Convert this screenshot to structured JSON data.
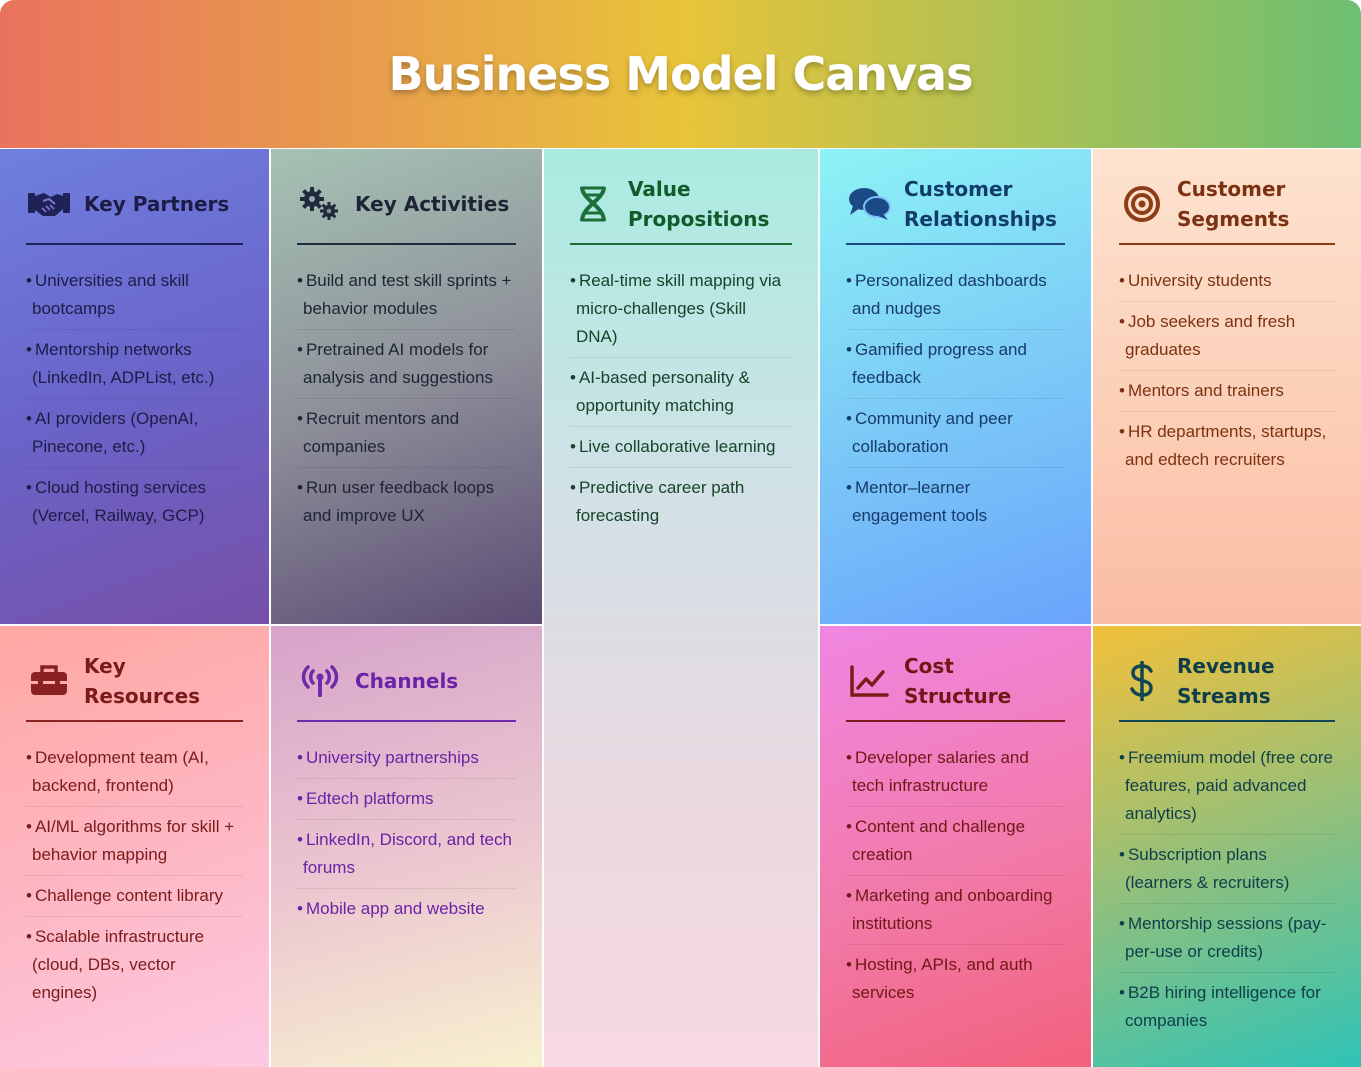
{
  "title": "Business Model Canvas",
  "blocks": {
    "key_partners": {
      "icon": "handshake-icon",
      "title": "Key Partners",
      "items": [
        "Universities and skill bootcamps",
        "Mentorship networks (LinkedIn, ADPList, etc.)",
        "AI providers (OpenAI, Pinecone, etc.)",
        "Cloud hosting services (Vercel, Railway, GCP)"
      ]
    },
    "key_activities": {
      "icon": "gears-icon",
      "title": "Key Activities",
      "items": [
        "Build and test skill sprints + behavior modules",
        "Pretrained AI models for analysis and suggestions",
        "Recruit mentors and companies",
        "Run user feedback loops and improve UX"
      ]
    },
    "value_propositions": {
      "icon": "dna-icon",
      "title": "Value Propositions",
      "items": [
        "Real-time skill mapping via micro-challenges (Skill DNA)",
        "AI-based personality & opportunity matching",
        "Live collaborative learning",
        "Predictive career path forecasting"
      ]
    },
    "customer_relationships": {
      "icon": "chat-bubbles-icon",
      "title": "Customer Relationships",
      "items": [
        "Personalized dashboards and nudges",
        "Gamified progress and feedback",
        "Community and peer collaboration",
        "Mentor–learner engagement tools"
      ]
    },
    "customer_segments": {
      "icon": "target-icon",
      "title": "Customer Segments",
      "items": [
        "University students",
        "Job seekers and fresh graduates",
        "Mentors and trainers",
        "HR departments, startups, and edtech recruiters"
      ]
    },
    "key_resources": {
      "icon": "toolbox-icon",
      "title": "Key Resources",
      "items": [
        "Development team (AI, backend, frontend)",
        "AI/ML algorithms for skill + behavior mapping",
        "Challenge content library",
        "Scalable infrastructure (cloud, DBs, vector engines)"
      ]
    },
    "channels": {
      "icon": "broadcast-tower-icon",
      "title": "Channels",
      "items": [
        "University partnerships",
        "Edtech platforms",
        "LinkedIn, Discord, and tech forums",
        "Mobile app and website"
      ]
    },
    "cost_structure": {
      "icon": "line-chart-icon",
      "title": "Cost Structure",
      "items": [
        "Developer salaries and tech infrastructure",
        "Content and challenge creation",
        "Marketing and onboarding institutions",
        "Hosting, APIs, and auth services"
      ]
    },
    "revenue_streams": {
      "icon": "dollar-sign-icon",
      "title": "Revenue Streams",
      "items": [
        "Freemium model (free core features, paid advanced analytics)",
        "Subscription plans (learners & recruiters)",
        "Mentorship sessions (pay-per-use or credits)",
        "B2B hiring intelligence for companies"
      ]
    }
  }
}
